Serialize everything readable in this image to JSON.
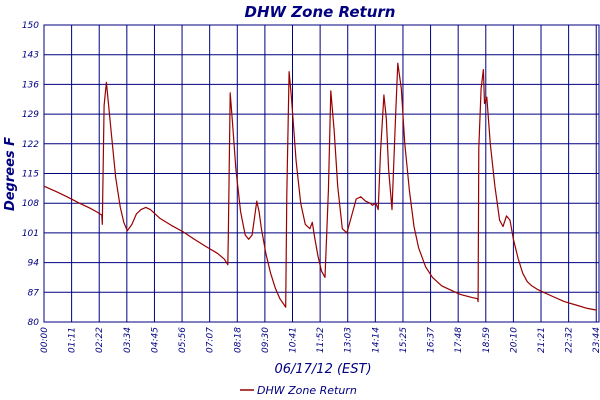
{
  "chart_data": {
    "type": "line",
    "title": "DHW Zone Return",
    "xlabel": "06/17/12 (EST)",
    "ylabel": "Degrees F",
    "ylim": [
      80,
      150
    ],
    "xlim": [
      0,
      24
    ],
    "y_ticks": [
      "80",
      "87",
      "94",
      "101",
      "108",
      "115",
      "122",
      "129",
      "136",
      "143",
      "150"
    ],
    "x_ticks": [
      "00:00",
      "01:11",
      "02:22",
      "03:34",
      "04:45",
      "05:56",
      "07:07",
      "08:18",
      "09:30",
      "10:41",
      "11:52",
      "13:03",
      "14:14",
      "15:25",
      "16:37",
      "17:48",
      "18:59",
      "20:10",
      "21:21",
      "22:32",
      "23:44"
    ],
    "grid": true,
    "legend_position": "bottom-center",
    "series": [
      {
        "name": "DHW Zone Return",
        "color": "#990000",
        "x": [
          0.0,
          0.5,
          1.0,
          1.5,
          2.0,
          2.3,
          2.5,
          2.52,
          2.6,
          2.7,
          2.9,
          3.1,
          3.3,
          3.45,
          3.6,
          3.8,
          4.0,
          4.2,
          4.4,
          4.6,
          4.8,
          5.0,
          5.5,
          6.0,
          6.5,
          7.0,
          7.5,
          7.8,
          7.95,
          7.97,
          8.05,
          8.15,
          8.3,
          8.5,
          8.7,
          8.85,
          9.0,
          9.2,
          9.3,
          9.4,
          9.6,
          9.8,
          10.0,
          10.2,
          10.45,
          10.5,
          10.6,
          10.7,
          10.9,
          11.1,
          11.3,
          11.5,
          11.6,
          11.7,
          11.85,
          12.0,
          12.15,
          12.3,
          12.4,
          12.55,
          12.7,
          12.9,
          13.1,
          13.3,
          13.5,
          13.7,
          13.9,
          14.1,
          14.2,
          14.35,
          14.45,
          14.55,
          14.7,
          14.8,
          14.9,
          15.05,
          15.2,
          15.3,
          15.45,
          15.6,
          15.8,
          16.0,
          16.2,
          16.5,
          16.8,
          17.2,
          17.6,
          18.0,
          18.5,
          18.75,
          18.77,
          18.8,
          18.9,
          19.0,
          19.05,
          19.15,
          19.3,
          19.5,
          19.7,
          19.85,
          20.0,
          20.15,
          20.3,
          20.5,
          20.7,
          20.9,
          21.1,
          21.3,
          21.6,
          22.0,
          22.5,
          23.0,
          23.5,
          23.9
        ],
        "values": [
          112.0,
          110.8,
          109.5,
          108.1,
          106.8,
          105.9,
          105.2,
          103.0,
          131.0,
          136.5,
          125.0,
          114.0,
          107.0,
          103.5,
          101.5,
          103.0,
          105.5,
          106.5,
          107.0,
          106.5,
          105.5,
          104.5,
          102.8,
          101.3,
          99.5,
          97.8,
          96.2,
          94.8,
          93.5,
          100.0,
          134.0,
          127.0,
          116.0,
          106.0,
          100.5,
          99.5,
          100.5,
          108.5,
          106.0,
          102.0,
          96.0,
          91.5,
          88.0,
          85.5,
          83.5,
          110.0,
          139.0,
          133.0,
          118.0,
          108.0,
          103.0,
          102.0,
          103.5,
          100.0,
          95.5,
          92.0,
          90.5,
          111.0,
          134.5,
          125.0,
          112.0,
          102.0,
          101.0,
          105.0,
          109.0,
          109.5,
          108.5,
          108.0,
          107.5,
          108.0,
          106.5,
          120.0,
          133.5,
          128.0,
          116.0,
          106.5,
          128.0,
          141.0,
          135.0,
          122.0,
          111.0,
          102.5,
          97.5,
          93.0,
          90.5,
          88.5,
          87.5,
          86.5,
          85.8,
          85.5,
          84.8,
          121.0,
          135.0,
          139.5,
          131.5,
          133.0,
          122.0,
          112.0,
          104.0,
          102.5,
          105.0,
          104.0,
          99.5,
          95.0,
          91.5,
          89.5,
          88.5,
          87.8,
          87.0,
          86.0,
          84.8,
          84.0,
          83.2,
          82.8
        ]
      }
    ]
  }
}
